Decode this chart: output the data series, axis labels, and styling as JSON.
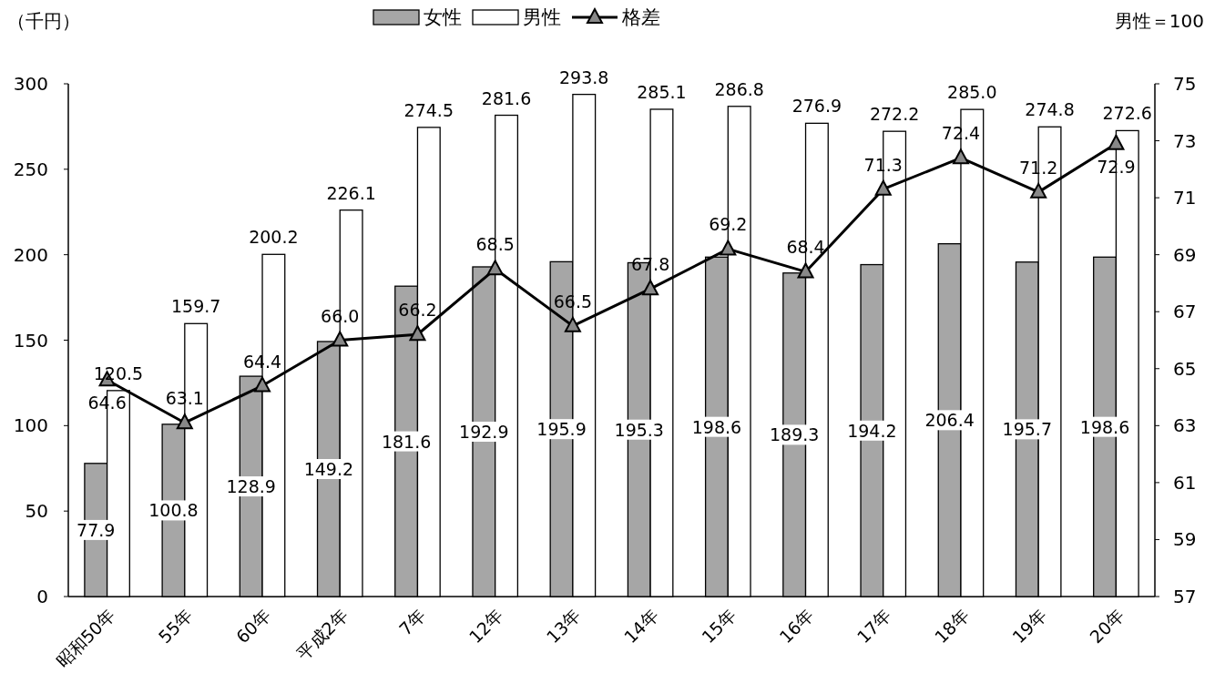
{
  "chart_data": {
    "type": "bar",
    "categories": [
      "昭和50年",
      "55年",
      "60年",
      "平成2年",
      "7年",
      "12年",
      "13年",
      "14年",
      "15年",
      "16年",
      "17年",
      "18年",
      "19年",
      "20年"
    ],
    "series": [
      {
        "name": "女性",
        "color": "#a6a6a6",
        "values": [
          77.9,
          100.8,
          128.9,
          149.2,
          181.6,
          192.9,
          195.9,
          195.3,
          198.6,
          189.3,
          194.2,
          206.4,
          195.7,
          198.6
        ],
        "value_labels": [
          "77.9",
          "100.8",
          "128.9",
          "149.2",
          "181.6",
          "192.9",
          "195.9",
          "195.3",
          "198.6",
          "189.3",
          "194.2",
          "206.4",
          "195.7",
          "198.6"
        ]
      },
      {
        "name": "男性",
        "color": "#ffffff",
        "values": [
          120.5,
          159.7,
          200.2,
          226.1,
          274.5,
          281.6,
          293.8,
          285.1,
          286.8,
          276.9,
          272.2,
          285.0,
          274.8,
          272.6
        ],
        "value_labels": [
          "120.5",
          "159.7",
          "200.2",
          "226.1",
          "274.5",
          "281.6",
          "293.8",
          "285.1",
          "286.8",
          "276.9",
          "272.2",
          "285.0",
          "274.8",
          "272.6"
        ]
      },
      {
        "name": "格差",
        "type": "line",
        "axis": "y2",
        "color": "#000000",
        "marker": "triangle",
        "values": [
          64.6,
          63.1,
          64.4,
          66.0,
          66.2,
          68.5,
          66.5,
          67.8,
          69.2,
          68.4,
          71.3,
          72.4,
          71.2,
          72.9
        ],
        "value_labels": [
          "64.6",
          "63.1",
          "64.4",
          "66.0",
          "66.2",
          "68.5",
          "66.5",
          "67.8",
          "69.2",
          "68.4",
          "71.3",
          "72.4",
          "71.2",
          "72.9"
        ]
      }
    ],
    "ylabel": "（千円）",
    "y2label": "男性＝100",
    "ylim": [
      0,
      300
    ],
    "yticks": [
      0,
      50,
      100,
      150,
      200,
      250,
      300
    ],
    "y2lim": [
      57,
      75
    ],
    "y2ticks": [
      57,
      59,
      61,
      63,
      65,
      67,
      69,
      71,
      73,
      75
    ],
    "legend": "top"
  }
}
